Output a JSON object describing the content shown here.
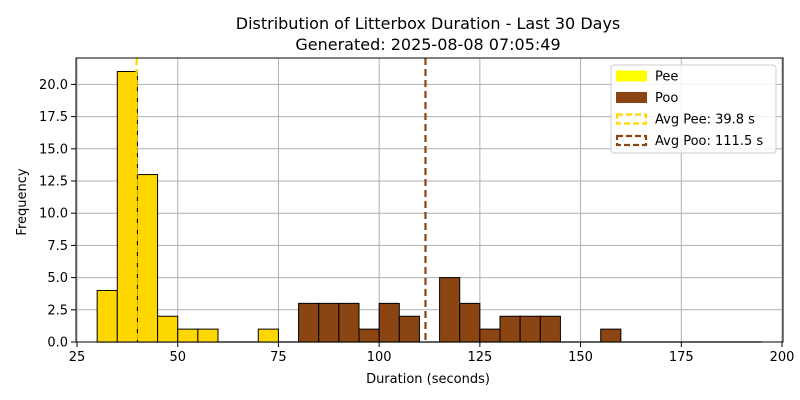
{
  "chart_data": {
    "type": "bar",
    "title_line1": "Distribution of Litterbox Duration - Last 30 Days",
    "title_line2": "Generated: 2025-08-08 07:05:49",
    "xlabel": "Duration (seconds)",
    "ylabel": "Frequency",
    "xlim": [
      24.75,
      200.25
    ],
    "ylim": [
      0,
      22.05
    ],
    "xticks": [
      25,
      50,
      75,
      100,
      125,
      150,
      175,
      200
    ],
    "xtick_labels": [
      "25",
      "50",
      "75",
      "100",
      "125",
      "150",
      "175",
      "200"
    ],
    "yticks": [
      0,
      2.5,
      5,
      7.5,
      10,
      12.5,
      15,
      17.5,
      20
    ],
    "ytick_labels": [
      "0.0",
      "2.5",
      "5.0",
      "7.5",
      "10.0",
      "12.5",
      "15.0",
      "17.5",
      "20.0"
    ],
    "grid": true,
    "legend_position": "top-right",
    "bin_width": 5,
    "series": [
      {
        "name": "Pee",
        "color": "#FFD700",
        "bins": [
          {
            "x": 30,
            "value": 4
          },
          {
            "x": 35,
            "value": 21
          },
          {
            "x": 40,
            "value": 13
          },
          {
            "x": 45,
            "value": 2
          },
          {
            "x": 50,
            "value": 1
          },
          {
            "x": 55,
            "value": 1
          },
          {
            "x": 70,
            "value": 1
          }
        ]
      },
      {
        "name": "Poo",
        "color": "#8B4513",
        "bins": [
          {
            "x": 80,
            "value": 3
          },
          {
            "x": 85,
            "value": 3
          },
          {
            "x": 90,
            "value": 3
          },
          {
            "x": 95,
            "value": 1
          },
          {
            "x": 100,
            "value": 3
          },
          {
            "x": 105,
            "value": 2
          },
          {
            "x": 115,
            "value": 5
          },
          {
            "x": 120,
            "value": 3
          },
          {
            "x": 125,
            "value": 1
          },
          {
            "x": 130,
            "value": 2
          },
          {
            "x": 135,
            "value": 2
          },
          {
            "x": 140,
            "value": 2
          },
          {
            "x": 155,
            "value": 1
          }
        ]
      }
    ],
    "zero_bin_range": [
      30,
      195
    ],
    "averages": [
      {
        "name": "Avg Pee: 39.8 s",
        "value": 39.8,
        "color": "#FFD700",
        "style": "dashed"
      },
      {
        "name": "Avg Poo: 111.5 s",
        "value": 111.5,
        "color": "#8B4513",
        "style": "dashed"
      }
    ],
    "legend_items": [
      {
        "label": "Pee",
        "color": "#FFFF00",
        "kind": "patch"
      },
      {
        "label": "Poo",
        "color": "#8B4513",
        "kind": "patch"
      },
      {
        "label": "Avg Pee: 39.8 s",
        "color": "#FFD700",
        "kind": "dashed-box"
      },
      {
        "label": "Avg Poo: 111.5 s",
        "color": "#8B4513",
        "kind": "dashed-box"
      }
    ]
  }
}
